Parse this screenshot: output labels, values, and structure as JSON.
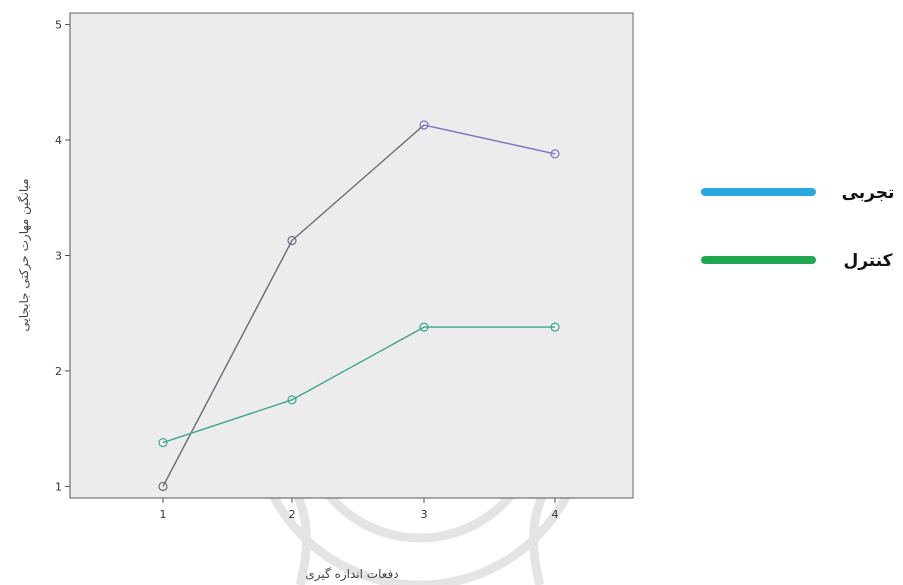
{
  "chart_data": {
    "type": "line",
    "categories": [
      "1",
      "2",
      "3",
      "4"
    ],
    "ylim": [
      0.9,
      5.1
    ],
    "yticks": [
      "1",
      "2",
      "3",
      "4",
      "5"
    ],
    "xlabel": "دفعات اندازه گیری",
    "ylabel": "میانگین مهارت حرکتی جابجایی",
    "grid": false,
    "legend_position": "right",
    "background_color": "#ececec",
    "series": [
      {
        "name": "تجربی",
        "values": [
          1.0,
          3.13,
          4.13,
          3.88
        ],
        "segment_colors": [
          "#6a6a7a",
          "#6a6a7a",
          "#7a74c8"
        ],
        "legend_color": "#29a8e0"
      },
      {
        "name": "کنترل",
        "values": [
          1.38,
          1.75,
          2.38,
          2.38
        ],
        "segment_colors": [
          "#3aa890",
          "#3aa890",
          "#3aa890"
        ],
        "legend_color": "#1fa84f"
      }
    ]
  }
}
